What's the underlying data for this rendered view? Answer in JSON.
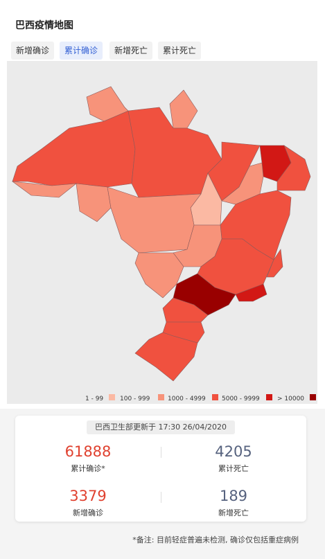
{
  "header": {
    "title": "巴西疫情地图"
  },
  "tabs": [
    "新增确诊",
    "累计确诊",
    "新增死亡",
    "累计死亡"
  ],
  "active_tab": 1,
  "legend": [
    {
      "label": "1 - 99",
      "color": "#fbb9a3"
    },
    {
      "label": "100 - 999",
      "color": "#f7937a"
    },
    {
      "label": "1000 - 4999",
      "color": "#f0513f"
    },
    {
      "label": "5000 - 9999",
      "color": "#d21815"
    },
    {
      "label": "> 10000",
      "color": "#990000"
    }
  ],
  "update": "巴西卫生部更新于 17:30 26/04/2020",
  "stats": [
    {
      "value": 61888,
      "label": "累计确诊*",
      "color": "#e0412f"
    },
    {
      "value": 4205,
      "label": "累计死亡",
      "color": "#56627e"
    },
    {
      "value": 3379,
      "label": "新增确诊",
      "color": "#e0412f"
    },
    {
      "value": 189,
      "label": "新增死亡",
      "color": "#56627e"
    }
  ],
  "note": "*备注: 目前轻症普遍未检测, 确诊仅包括重症病例"
}
